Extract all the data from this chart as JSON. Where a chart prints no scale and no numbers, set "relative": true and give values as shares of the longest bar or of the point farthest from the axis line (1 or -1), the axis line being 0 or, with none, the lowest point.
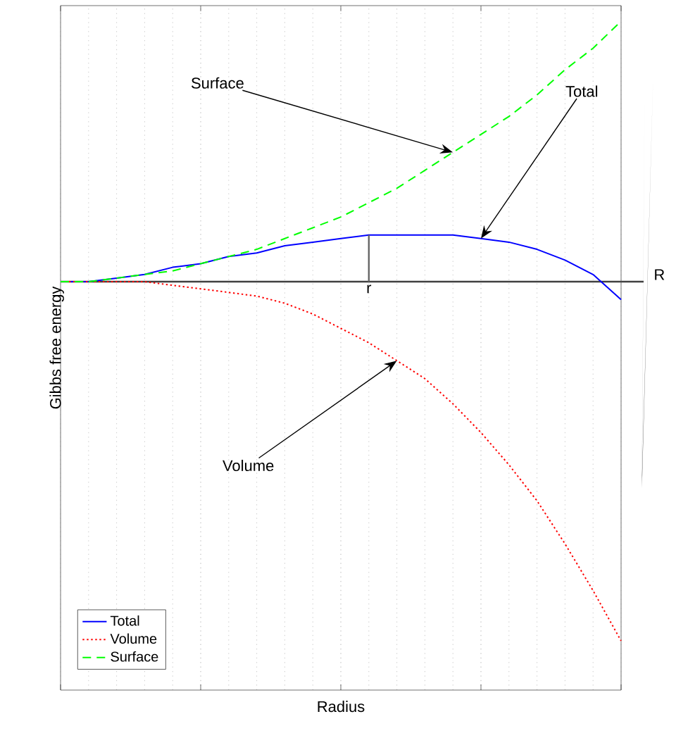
{
  "chart_data": {
    "type": "line",
    "relative": true,
    "xlabel": "Radius",
    "ylabel": "Gibbs free energy",
    "categories": [
      null,
      null,
      null,
      null,
      null,
      null,
      null,
      null,
      null,
      null,
      null,
      null,
      null,
      null,
      null,
      null,
      null,
      null,
      null,
      null,
      null
    ],
    "series": [
      {
        "name": "Total",
        "color": "#0000ff",
        "line_style": "solid",
        "values": [
          0,
          0.0,
          0.01,
          0.02,
          0.04,
          0.05,
          0.07,
          0.08,
          0.1,
          0.11,
          0.12,
          0.13,
          0.13,
          0.13,
          0.13,
          0.12,
          0.11,
          0.09,
          0.06,
          0.02,
          -0.05
        ]
      },
      {
        "name": "Volume",
        "color": "#ff0000",
        "line_style": "dotted",
        "values": [
          0,
          0,
          0,
          0,
          -0.01,
          -0.02,
          -0.03,
          -0.04,
          -0.06,
          -0.09,
          -0.13,
          -0.17,
          -0.22,
          -0.27,
          -0.34,
          -0.42,
          -0.51,
          -0.61,
          -0.73,
          -0.86,
          -1
        ]
      },
      {
        "name": "Surface",
        "color": "#00ff00",
        "line_style": "dashed",
        "values": [
          0,
          0.0,
          0.01,
          0.02,
          0.03,
          0.05,
          0.07,
          0.09,
          0.12,
          0.15,
          0.18,
          0.22,
          0.26,
          0.31,
          0.36,
          0.41,
          0.46,
          0.52,
          0.59,
          0.65,
          0.725
        ]
      }
    ],
    "annotations": [
      "Surface",
      "Total",
      "Volume",
      "r",
      "R"
    ],
    "grid": "x",
    "legend": "bottom left",
    "marker": "none"
  }
}
